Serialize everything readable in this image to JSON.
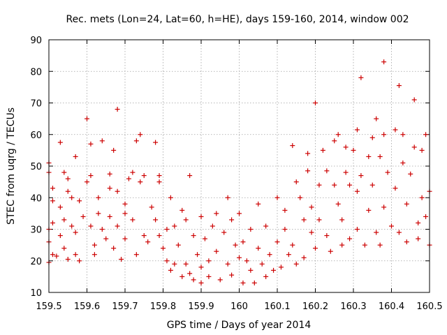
{
  "chart_data": {
    "type": "scatter",
    "title": "Rec. mets (Lon=24, Lat=60, h=HE), days 159-160, 2014, window 002",
    "xlabel": "GPS time / Days of year 2014",
    "ylabel": "STEC from uqrg / TECUs",
    "xlim": [
      159.5,
      160.5
    ],
    "ylim": [
      10,
      90
    ],
    "x_ticks": [
      "159.5",
      "159.6",
      "159.7",
      "159.8",
      "159.9",
      "160",
      "160.1",
      "160.2",
      "160.3",
      "160.4",
      "160.5"
    ],
    "y_ticks": [
      "10",
      "20",
      "30",
      "40",
      "50",
      "60",
      "70",
      "80",
      "90"
    ],
    "grid": true,
    "marker": "+",
    "color": "#cc0000",
    "series": [
      {
        "points": [
          [
            159.5,
            51
          ],
          [
            159.5,
            48
          ],
          [
            159.51,
            43
          ],
          [
            159.51,
            39
          ],
          [
            159.51,
            32
          ],
          [
            159.5,
            30
          ],
          [
            159.5,
            26
          ],
          [
            159.51,
            22
          ],
          [
            159.5,
            19.5
          ],
          [
            159.52,
            21.5
          ],
          [
            159.53,
            57.5
          ],
          [
            159.53,
            37
          ],
          [
            159.54,
            33
          ],
          [
            159.54,
            24
          ],
          [
            159.53,
            28
          ],
          [
            159.54,
            48
          ],
          [
            159.55,
            46
          ],
          [
            159.55,
            42
          ],
          [
            159.55,
            20.5
          ],
          [
            159.56,
            40
          ],
          [
            159.56,
            31
          ],
          [
            159.57,
            53
          ],
          [
            159.57,
            22
          ],
          [
            159.57,
            29
          ],
          [
            159.58,
            39
          ],
          [
            159.58,
            20
          ],
          [
            159.59,
            34
          ],
          [
            159.6,
            65
          ],
          [
            159.6,
            45
          ],
          [
            159.61,
            57
          ],
          [
            159.61,
            47
          ],
          [
            159.61,
            31
          ],
          [
            159.62,
            25
          ],
          [
            159.62,
            22
          ],
          [
            159.63,
            40
          ],
          [
            159.63,
            35
          ],
          [
            159.64,
            58
          ],
          [
            159.64,
            30
          ],
          [
            159.65,
            27
          ],
          [
            159.66,
            47.5
          ],
          [
            159.66,
            43
          ],
          [
            159.66,
            34
          ],
          [
            159.67,
            55
          ],
          [
            159.67,
            24
          ],
          [
            159.68,
            68
          ],
          [
            159.68,
            42
          ],
          [
            159.68,
            31
          ],
          [
            159.69,
            20.5
          ],
          [
            159.7,
            38
          ],
          [
            159.7,
            35
          ],
          [
            159.7,
            27
          ],
          [
            159.71,
            46
          ],
          [
            159.72,
            48
          ],
          [
            159.72,
            33
          ],
          [
            159.73,
            58
          ],
          [
            159.73,
            22
          ],
          [
            159.74,
            60
          ],
          [
            159.74,
            45
          ],
          [
            159.75,
            47
          ],
          [
            159.75,
            28
          ],
          [
            159.76,
            26
          ],
          [
            159.77,
            37
          ],
          [
            159.78,
            57.5
          ],
          [
            159.78,
            33
          ],
          [
            159.79,
            47
          ],
          [
            159.79,
            45
          ],
          [
            159.79,
            28
          ],
          [
            159.8,
            24
          ],
          [
            159.81,
            30
          ],
          [
            159.81,
            20
          ],
          [
            159.82,
            40
          ],
          [
            159.82,
            17
          ],
          [
            159.83,
            31
          ],
          [
            159.83,
            19
          ],
          [
            159.84,
            25
          ],
          [
            159.85,
            36
          ],
          [
            159.85,
            15
          ],
          [
            159.86,
            33
          ],
          [
            159.86,
            19
          ],
          [
            159.87,
            47
          ],
          [
            159.87,
            16
          ],
          [
            159.88,
            28
          ],
          [
            159.88,
            14
          ],
          [
            159.89,
            22
          ],
          [
            159.9,
            34
          ],
          [
            159.9,
            18
          ],
          [
            159.9,
            13
          ],
          [
            159.91,
            27
          ],
          [
            159.92,
            20
          ],
          [
            159.92,
            15
          ],
          [
            159.93,
            31
          ],
          [
            159.94,
            35
          ],
          [
            159.94,
            23
          ],
          [
            159.95,
            14
          ],
          [
            159.96,
            29
          ],
          [
            159.97,
            40
          ],
          [
            159.97,
            19
          ],
          [
            159.98,
            33
          ],
          [
            159.98,
            15.5
          ],
          [
            159.99,
            25
          ],
          [
            160.0,
            35
          ],
          [
            160.0,
            21
          ],
          [
            160.01,
            26
          ],
          [
            160.01,
            13
          ],
          [
            160.02,
            20
          ],
          [
            160.03,
            30
          ],
          [
            160.03,
            17
          ],
          [
            160.04,
            13
          ],
          [
            160.05,
            38
          ],
          [
            160.05,
            24
          ],
          [
            160.06,
            19
          ],
          [
            160.07,
            15
          ],
          [
            160.07,
            31
          ],
          [
            160.08,
            22
          ],
          [
            160.09,
            17
          ],
          [
            160.1,
            40
          ],
          [
            160.1,
            26
          ],
          [
            160.11,
            18
          ],
          [
            160.12,
            36
          ],
          [
            160.12,
            30
          ],
          [
            160.13,
            22
          ],
          [
            160.14,
            56.5
          ],
          [
            160.14,
            25
          ],
          [
            160.15,
            19
          ],
          [
            160.15,
            45
          ],
          [
            160.16,
            40
          ],
          [
            160.17,
            33
          ],
          [
            160.17,
            21
          ],
          [
            160.18,
            54
          ],
          [
            160.18,
            48.5
          ],
          [
            160.19,
            37
          ],
          [
            160.19,
            29
          ],
          [
            160.2,
            70
          ],
          [
            160.2,
            24
          ],
          [
            160.21,
            44
          ],
          [
            160.21,
            33
          ],
          [
            160.22,
            55
          ],
          [
            160.23,
            28
          ],
          [
            160.23,
            48.5
          ],
          [
            160.24,
            23
          ],
          [
            160.25,
            58
          ],
          [
            160.25,
            44
          ],
          [
            160.26,
            60
          ],
          [
            160.26,
            38
          ],
          [
            160.27,
            33
          ],
          [
            160.27,
            25
          ],
          [
            160.28,
            56
          ],
          [
            160.28,
            48
          ],
          [
            160.29,
            44
          ],
          [
            160.29,
            27
          ],
          [
            160.3,
            55
          ],
          [
            160.31,
            61.5
          ],
          [
            160.31,
            42
          ],
          [
            160.31,
            30
          ],
          [
            160.32,
            78
          ],
          [
            160.32,
            47
          ],
          [
            160.33,
            25
          ],
          [
            160.34,
            53
          ],
          [
            160.34,
            36
          ],
          [
            160.35,
            59
          ],
          [
            160.35,
            44
          ],
          [
            160.36,
            65
          ],
          [
            160.36,
            29
          ],
          [
            160.37,
            53
          ],
          [
            160.37,
            25
          ],
          [
            160.38,
            83
          ],
          [
            160.38,
            60
          ],
          [
            160.38,
            37
          ],
          [
            160.39,
            48
          ],
          [
            160.4,
            31
          ],
          [
            160.41,
            61.5
          ],
          [
            160.41,
            43
          ],
          [
            160.42,
            75.5
          ],
          [
            160.42,
            29
          ],
          [
            160.43,
            60
          ],
          [
            160.43,
            51
          ],
          [
            160.44,
            38
          ],
          [
            160.44,
            26
          ],
          [
            160.45,
            47.5
          ],
          [
            160.46,
            71
          ],
          [
            160.46,
            56
          ],
          [
            160.47,
            32
          ],
          [
            160.47,
            27
          ],
          [
            160.48,
            55
          ],
          [
            160.48,
            40
          ],
          [
            160.49,
            60
          ],
          [
            160.49,
            34
          ],
          [
            160.5,
            25
          ],
          [
            160.5,
            42
          ]
        ]
      }
    ]
  }
}
